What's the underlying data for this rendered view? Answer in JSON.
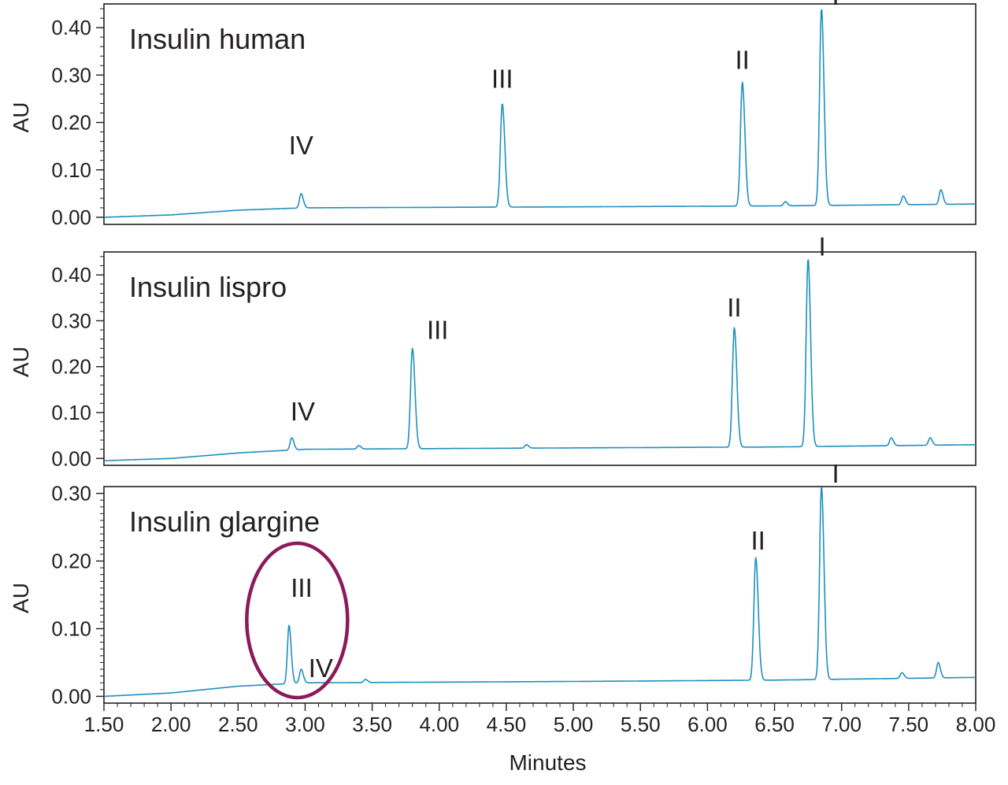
{
  "chart_data": [
    {
      "type": "line",
      "title": "Insulin human",
      "ylabel": "AU",
      "xlabel": "",
      "xlim": [
        1.5,
        8.0
      ],
      "ylim": [
        -0.015,
        0.45
      ],
      "yticks": [
        "0.00",
        "0.10",
        "0.20",
        "0.30",
        "0.40"
      ],
      "ytick_values": [
        0.0,
        0.1,
        0.2,
        0.3,
        0.4
      ],
      "line_color": "#1f8fbf",
      "grid": false,
      "baseline": [
        [
          1.5,
          0.0
        ],
        [
          2.0,
          0.005
        ],
        [
          2.5,
          0.015
        ],
        [
          3.0,
          0.02
        ],
        [
          5.0,
          0.022
        ],
        [
          6.5,
          0.024
        ],
        [
          8.0,
          0.028
        ]
      ],
      "peaks": [
        {
          "label": "IV",
          "x": 2.97,
          "y": 0.05
        },
        {
          "label": "III",
          "x": 4.47,
          "y": 0.24
        },
        {
          "label": "II",
          "x": 6.26,
          "y": 0.285
        },
        {
          "label": "I",
          "x": 6.85,
          "y": 0.44
        }
      ],
      "minor_peaks": [
        {
          "x": 6.58,
          "y": 0.033
        },
        {
          "x": 7.46,
          "y": 0.045
        },
        {
          "x": 7.74,
          "y": 0.058
        }
      ]
    },
    {
      "type": "line",
      "title": "Insulin lispro",
      "ylabel": "AU",
      "xlabel": "",
      "xlim": [
        1.5,
        8.0
      ],
      "ylim": [
        -0.015,
        0.45
      ],
      "yticks": [
        "0.00",
        "0.10",
        "0.20",
        "0.30",
        "0.40"
      ],
      "ytick_values": [
        0.0,
        0.1,
        0.2,
        0.3,
        0.4
      ],
      "line_color": "#1f8fbf",
      "grid": false,
      "baseline": [
        [
          1.5,
          -0.005
        ],
        [
          2.0,
          0.0
        ],
        [
          2.5,
          0.012
        ],
        [
          3.0,
          0.02
        ],
        [
          5.0,
          0.023
        ],
        [
          6.5,
          0.025
        ],
        [
          8.0,
          0.03
        ]
      ],
      "peaks": [
        {
          "label": "IV",
          "x": 2.9,
          "y": 0.045
        },
        {
          "label": "III",
          "x": 3.8,
          "y": 0.24
        },
        {
          "label": "II",
          "x": 6.2,
          "y": 0.285
        },
        {
          "label": "I",
          "x": 6.75,
          "y": 0.435
        }
      ],
      "minor_peaks": [
        {
          "x": 3.4,
          "y": 0.028
        },
        {
          "x": 4.65,
          "y": 0.03
        },
        {
          "x": 7.37,
          "y": 0.045
        },
        {
          "x": 7.66,
          "y": 0.045
        }
      ]
    },
    {
      "type": "line",
      "title": "Insulin glargine",
      "ylabel": "AU",
      "xlabel": "Minutes",
      "xlim": [
        1.5,
        8.0
      ],
      "ylim": [
        -0.01,
        0.31
      ],
      "yticks": [
        "0.00",
        "0.10",
        "0.20",
        "0.30"
      ],
      "ytick_values": [
        0.0,
        0.1,
        0.2,
        0.3
      ],
      "xticks": [
        "1.50",
        "2.00",
        "2.50",
        "3.00",
        "3.50",
        "4.00",
        "4.50",
        "5.00",
        "5.50",
        "6.00",
        "6.50",
        "7.00",
        "7.50",
        "8.00"
      ],
      "xtick_values": [
        1.5,
        2.0,
        2.5,
        3.0,
        3.5,
        4.0,
        4.5,
        5.0,
        5.5,
        6.0,
        6.5,
        7.0,
        7.5,
        8.0
      ],
      "line_color": "#1f8fbf",
      "grid": false,
      "baseline": [
        [
          1.5,
          0.0
        ],
        [
          2.0,
          0.005
        ],
        [
          2.5,
          0.015
        ],
        [
          3.0,
          0.02
        ],
        [
          5.0,
          0.022
        ],
        [
          6.5,
          0.024
        ],
        [
          8.0,
          0.028
        ]
      ],
      "peaks": [
        {
          "label": "III",
          "x": 2.88,
          "y": 0.105
        },
        {
          "label": "IV",
          "x": 2.97,
          "y": 0.04
        },
        {
          "label": "II",
          "x": 6.36,
          "y": 0.205
        },
        {
          "label": "I",
          "x": 6.85,
          "y": 0.31
        }
      ],
      "minor_peaks": [
        {
          "x": 3.45,
          "y": 0.025
        },
        {
          "x": 7.45,
          "y": 0.035
        },
        {
          "x": 7.72,
          "y": 0.05
        }
      ],
      "highlight": {
        "shape": "ellipse",
        "color": "#8b1a5a",
        "center_x": 2.97,
        "around": [
          "III",
          "IV"
        ]
      }
    }
  ]
}
